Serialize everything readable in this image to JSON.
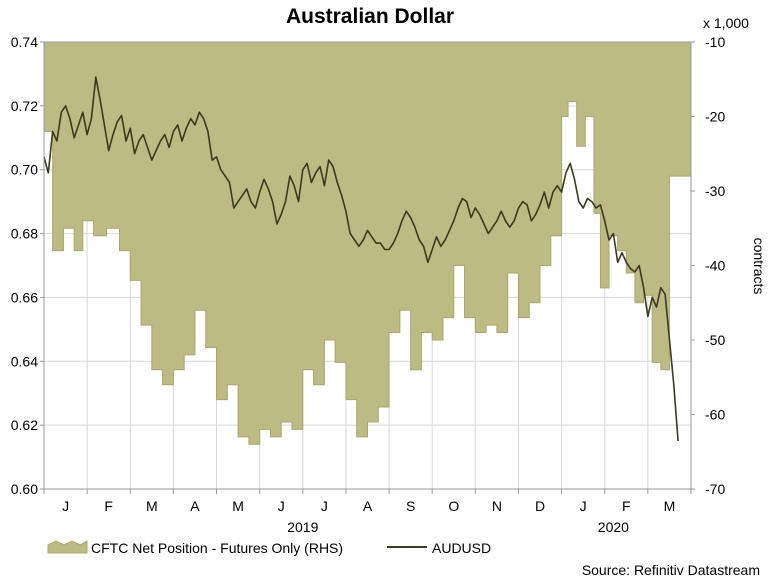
{
  "chart_data": {
    "type": "line+area",
    "title": "Australian Dollar",
    "left_axis": {
      "ylim": [
        0.6,
        0.74
      ],
      "ticks": [
        "0.60",
        "0.62",
        "0.64",
        "0.66",
        "0.68",
        "0.70",
        "0.72",
        "0.74"
      ]
    },
    "right_axis": {
      "ylim": [
        -70,
        -10
      ],
      "ticks": [
        "-70",
        "-60",
        "-50",
        "-40",
        "-30",
        "-20",
        "-10"
      ],
      "ylabel": "contracts",
      "unit_note": "x 1,000"
    },
    "xlim": [
      0,
      15
    ],
    "months": [
      "J",
      "F",
      "M",
      "A",
      "M",
      "J",
      "J",
      "A",
      "S",
      "O",
      "N",
      "D",
      "J",
      "F",
      "M"
    ],
    "year_labels": [
      {
        "text": "2019",
        "x": 6.0
      },
      {
        "text": "2020",
        "x": 13.2
      }
    ],
    "legend": {
      "cftc_label": "CFTC Net Position - Futures Only (RHS)",
      "audusd_label": "AUDUSD"
    },
    "source": "Source: Refinitiv Datastream",
    "colors": {
      "area_fill": "#bdbb84",
      "area_stroke": "#a9a76c",
      "line": "#3a3a1e",
      "grid": "#d8d8d8",
      "axis": "#999999"
    },
    "series": [
      {
        "name": "CFTC Net Position - Futures Only (RHS)",
        "axis": "right",
        "kind": "step-area",
        "x": [
          0.0,
          0.2,
          0.45,
          0.7,
          0.9,
          1.15,
          1.45,
          1.75,
          2.0,
          2.25,
          2.5,
          2.75,
          3.0,
          3.25,
          3.5,
          3.75,
          4.0,
          4.25,
          4.5,
          4.75,
          5.0,
          5.25,
          5.5,
          5.75,
          6.0,
          6.25,
          6.5,
          6.75,
          7.0,
          7.25,
          7.5,
          7.75,
          8.0,
          8.25,
          8.5,
          8.75,
          9.0,
          9.25,
          9.5,
          9.75,
          10.0,
          10.25,
          10.5,
          10.75,
          11.0,
          11.25,
          11.5,
          11.75,
          12.0,
          12.15,
          12.35,
          12.55,
          12.75,
          12.9,
          13.1,
          13.3,
          13.5,
          13.7,
          13.9,
          14.1,
          14.3,
          14.5
        ],
        "values": [
          -22,
          -38,
          -35,
          -38,
          -34,
          -36,
          -35,
          -38,
          -42,
          -48,
          -54,
          -56,
          -54,
          -52,
          -46,
          -51,
          -58,
          -56,
          -63,
          -64,
          -62,
          -63,
          -61,
          -62,
          -54,
          -56,
          -50,
          -53,
          -58,
          -63,
          -61,
          -59,
          -49,
          -46,
          -54,
          -49,
          -50,
          -47,
          -40,
          -47,
          -49,
          -48,
          -49,
          -41,
          -47,
          -45,
          -40,
          -36,
          -20,
          -18,
          -24,
          -20,
          -33,
          -43,
          -36,
          -38,
          -41,
          -45,
          -44,
          -53,
          -54,
          -28
        ]
      },
      {
        "name": "AUDUSD",
        "axis": "left",
        "kind": "line",
        "x": [
          0.0,
          0.1,
          0.2,
          0.3,
          0.4,
          0.5,
          0.6,
          0.7,
          0.8,
          0.9,
          1.0,
          1.1,
          1.2,
          1.3,
          1.4,
          1.5,
          1.6,
          1.7,
          1.8,
          1.9,
          2.0,
          2.1,
          2.2,
          2.3,
          2.4,
          2.5,
          2.6,
          2.7,
          2.8,
          2.9,
          3.0,
          3.1,
          3.2,
          3.3,
          3.4,
          3.5,
          3.6,
          3.7,
          3.8,
          3.9,
          4.0,
          4.1,
          4.2,
          4.3,
          4.4,
          4.5,
          4.6,
          4.7,
          4.8,
          4.9,
          5.0,
          5.1,
          5.2,
          5.3,
          5.4,
          5.5,
          5.6,
          5.7,
          5.8,
          5.9,
          6.0,
          6.1,
          6.2,
          6.3,
          6.4,
          6.5,
          6.6,
          6.7,
          6.8,
          6.9,
          7.0,
          7.1,
          7.2,
          7.3,
          7.4,
          7.5,
          7.6,
          7.7,
          7.8,
          7.9,
          8.0,
          8.1,
          8.2,
          8.3,
          8.4,
          8.5,
          8.6,
          8.7,
          8.8,
          8.9,
          9.0,
          9.1,
          9.2,
          9.3,
          9.4,
          9.5,
          9.6,
          9.7,
          9.8,
          9.9,
          10.0,
          10.1,
          10.2,
          10.3,
          10.4,
          10.5,
          10.6,
          10.7,
          10.8,
          10.9,
          11.0,
          11.1,
          11.2,
          11.3,
          11.4,
          11.5,
          11.6,
          11.7,
          11.8,
          11.9,
          12.0,
          12.1,
          12.2,
          12.3,
          12.4,
          12.5,
          12.6,
          12.7,
          12.8,
          12.9,
          13.0,
          13.1,
          13.2,
          13.3,
          13.4,
          13.5,
          13.6,
          13.7,
          13.8,
          13.9,
          14.0,
          14.1,
          14.2,
          14.3,
          14.4,
          14.5,
          14.6,
          14.7
        ],
        "values": [
          0.704,
          0.699,
          0.712,
          0.709,
          0.718,
          0.72,
          0.716,
          0.71,
          0.714,
          0.718,
          0.711,
          0.716,
          0.729,
          0.722,
          0.714,
          0.706,
          0.711,
          0.715,
          0.717,
          0.709,
          0.713,
          0.705,
          0.709,
          0.711,
          0.707,
          0.703,
          0.706,
          0.709,
          0.711,
          0.707,
          0.712,
          0.714,
          0.709,
          0.713,
          0.716,
          0.714,
          0.718,
          0.716,
          0.712,
          0.703,
          0.704,
          0.7,
          0.698,
          0.696,
          0.688,
          0.69,
          0.692,
          0.694,
          0.69,
          0.688,
          0.693,
          0.697,
          0.694,
          0.69,
          0.683,
          0.686,
          0.69,
          0.698,
          0.695,
          0.69,
          0.7,
          0.702,
          0.696,
          0.699,
          0.701,
          0.695,
          0.703,
          0.701,
          0.696,
          0.692,
          0.687,
          0.68,
          0.678,
          0.676,
          0.678,
          0.681,
          0.679,
          0.677,
          0.677,
          0.675,
          0.675,
          0.677,
          0.68,
          0.684,
          0.687,
          0.685,
          0.682,
          0.678,
          0.676,
          0.671,
          0.675,
          0.679,
          0.676,
          0.678,
          0.681,
          0.684,
          0.688,
          0.691,
          0.69,
          0.685,
          0.688,
          0.686,
          0.683,
          0.68,
          0.682,
          0.684,
          0.687,
          0.684,
          0.682,
          0.684,
          0.688,
          0.69,
          0.689,
          0.684,
          0.686,
          0.689,
          0.693,
          0.688,
          0.693,
          0.695,
          0.693,
          0.699,
          0.702,
          0.697,
          0.69,
          0.688,
          0.691,
          0.69,
          0.688,
          0.689,
          0.684,
          0.678,
          0.68,
          0.671,
          0.674,
          0.671,
          0.669,
          0.668,
          0.67,
          0.663,
          0.654,
          0.66,
          0.657,
          0.663,
          0.661,
          0.647,
          0.633,
          0.615
        ]
      }
    ]
  }
}
